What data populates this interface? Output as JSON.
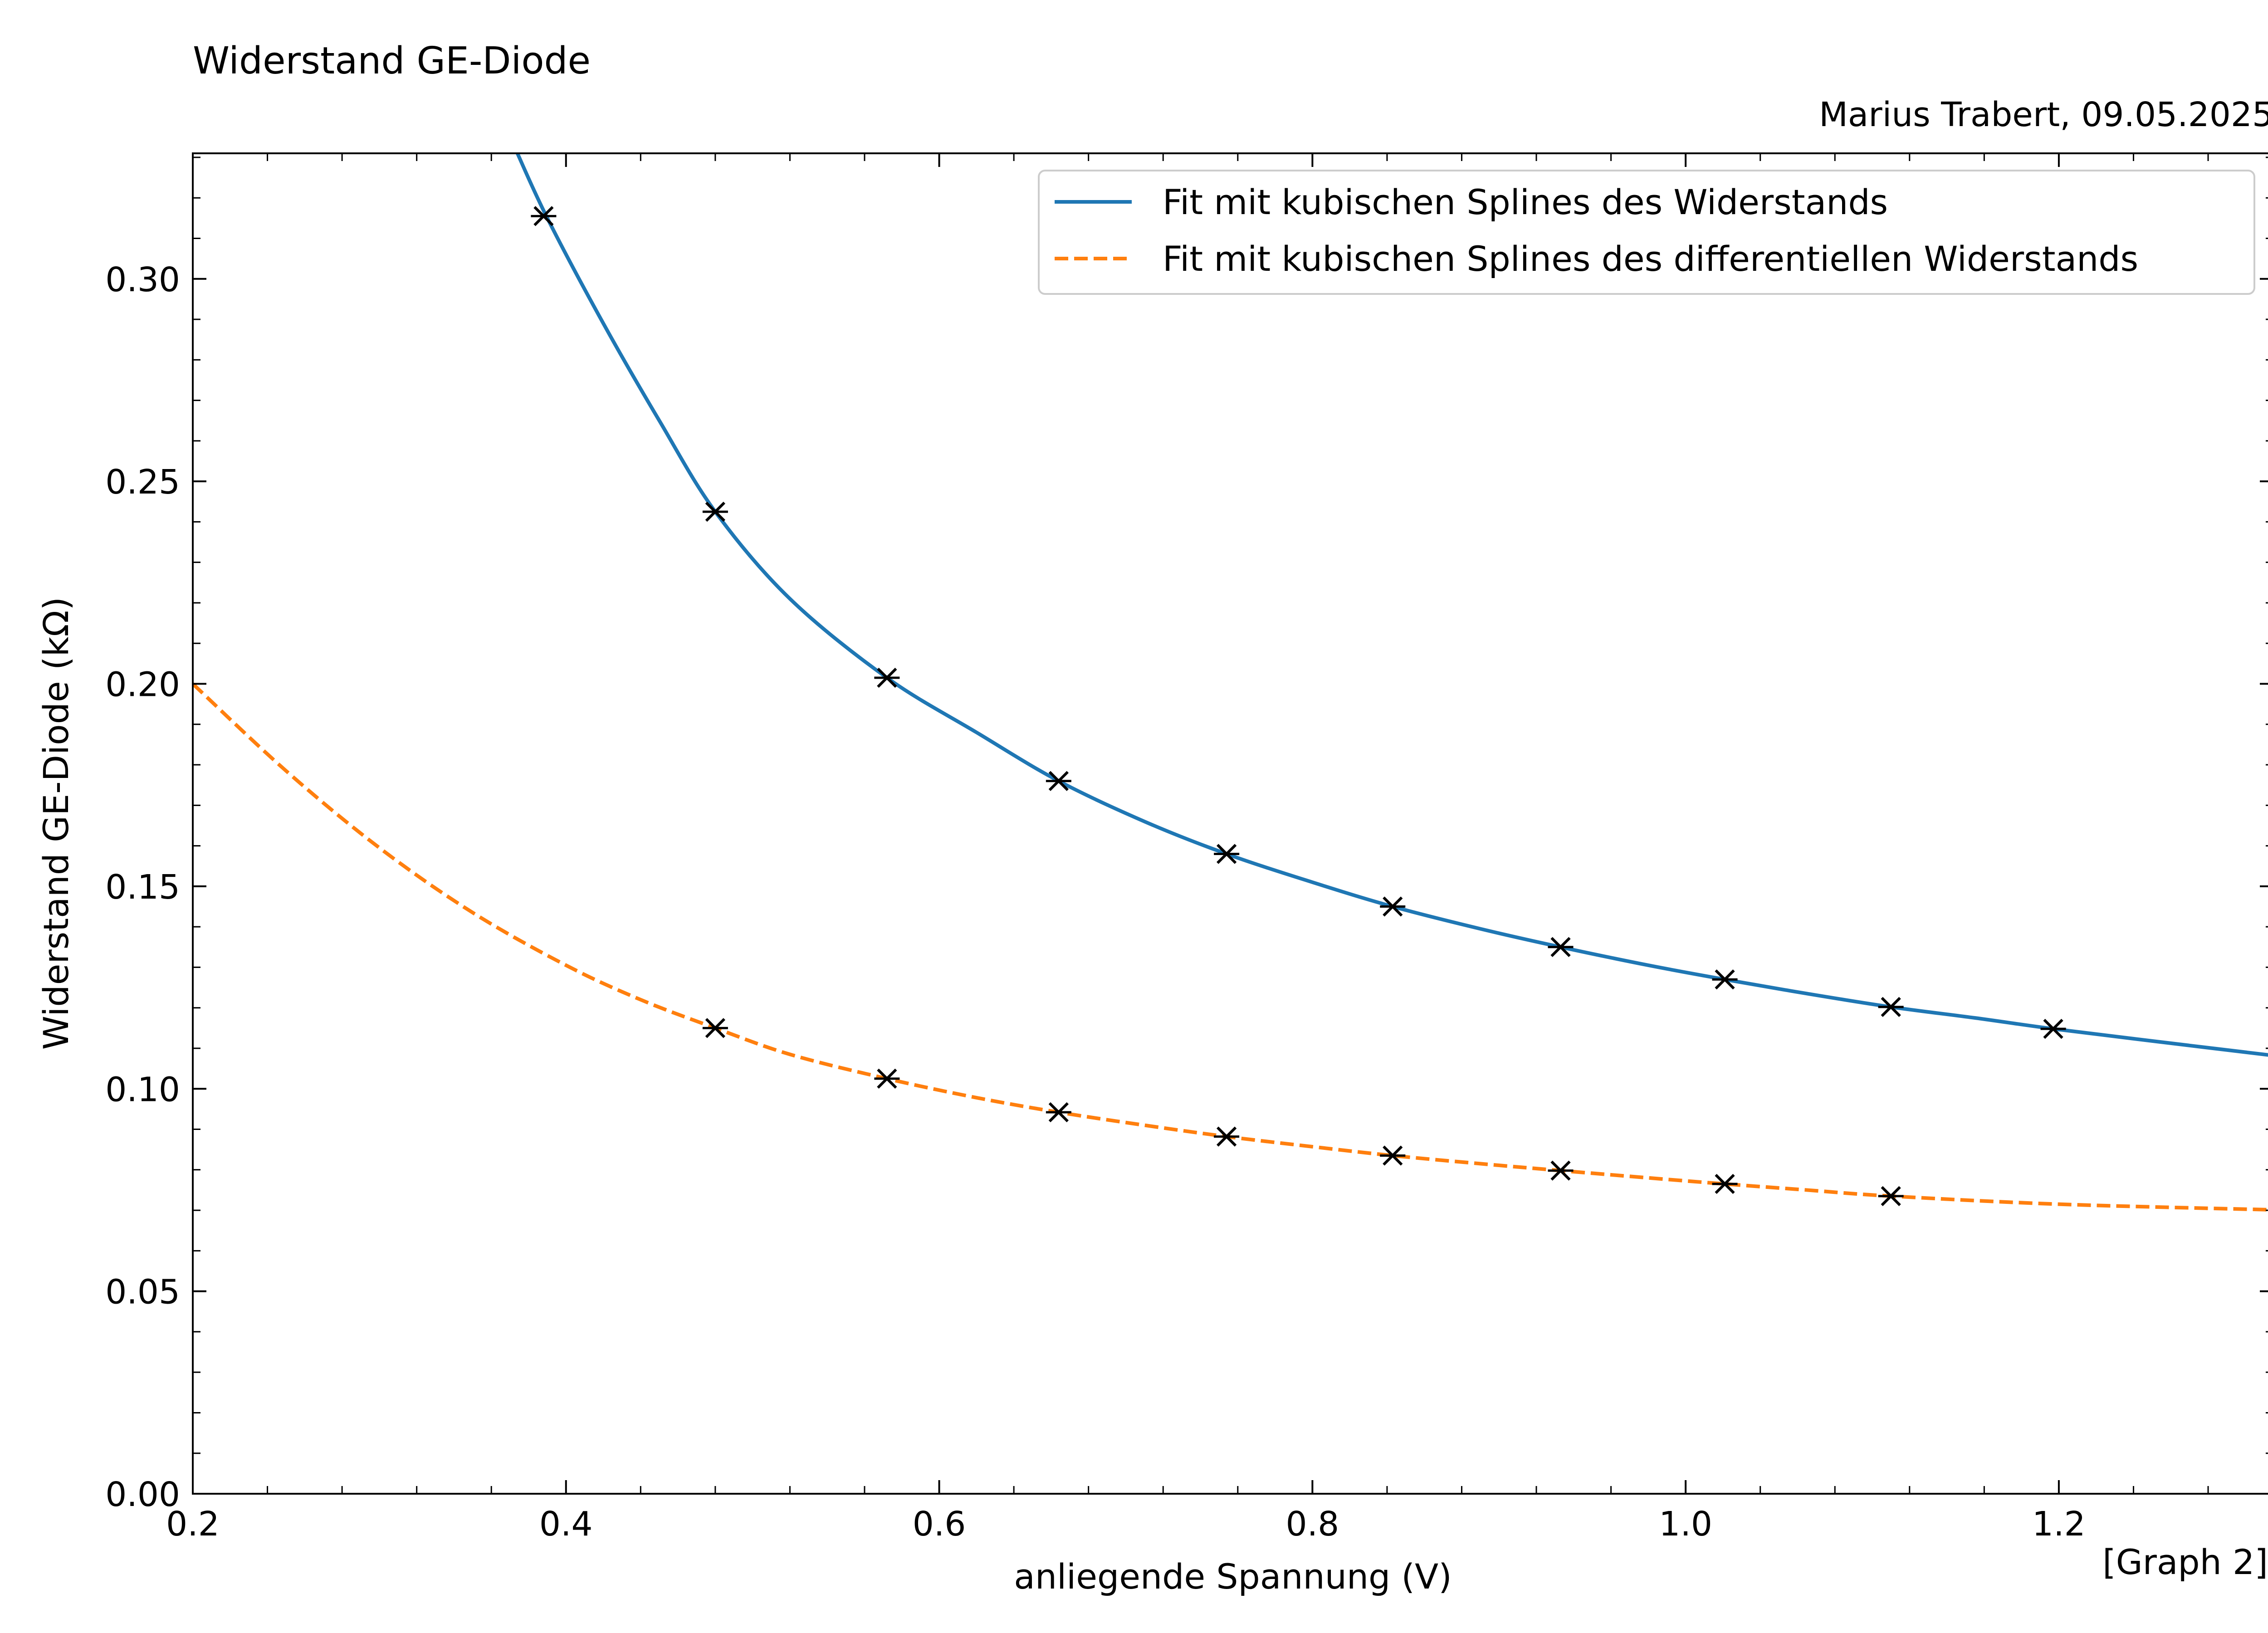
{
  "chart_data": {
    "type": "line",
    "title": "Widerstand GE-Diode",
    "subtitle": "Marius Trabert, 09.05.2025",
    "xlabel": "anliegende Spannung (V)",
    "ylabel": "Widerstand GE-Diode (kΩ)",
    "footnote": "[Graph 2]",
    "xlim": [
      0.2,
      1.315
    ],
    "ylim": [
      0.0,
      0.331
    ],
    "x_ticks": [
      0.2,
      0.4,
      0.6,
      0.8,
      1.0,
      1.2
    ],
    "x_tick_labels": [
      "0.2",
      "0.4",
      "0.6",
      "0.8",
      "1.0",
      "1.2"
    ],
    "y_ticks": [
      0.0,
      0.05,
      0.1,
      0.15,
      0.2,
      0.25,
      0.3
    ],
    "y_tick_labels": [
      "0.00",
      "0.05",
      "0.10",
      "0.15",
      "0.20",
      "0.25",
      "0.30"
    ],
    "grid": false,
    "legend_position": "top-right",
    "colors": {
      "series1": "#1f77b4",
      "series2": "#ff7f0e",
      "markers": "#000000"
    },
    "series": [
      {
        "name": "Fit mit kubischen Splines des Widerstands",
        "style": "solid",
        "curve_x": [
          0.373,
          0.39,
          0.42,
          0.45,
          0.48,
          0.52,
          0.572,
          0.62,
          0.664,
          0.71,
          0.754,
          0.8,
          0.843,
          0.89,
          0.933,
          0.98,
          1.021,
          1.065,
          1.11,
          1.155,
          1.197,
          1.25,
          1.315
        ],
        "curve_y": [
          0.332,
          0.315,
          0.289,
          0.265,
          0.2425,
          0.221,
          0.2015,
          0.188,
          0.176,
          0.166,
          0.158,
          0.151,
          0.145,
          0.1395,
          0.135,
          0.1305,
          0.127,
          0.1235,
          0.1202,
          0.1175,
          0.1148,
          0.1118,
          0.1082
        ],
        "points_x": [
          0.388,
          0.48,
          0.572,
          0.664,
          0.754,
          0.843,
          0.933,
          1.021,
          1.11,
          1.197
        ],
        "points_y": [
          0.3155,
          0.2425,
          0.2015,
          0.176,
          0.158,
          0.145,
          0.135,
          0.127,
          0.1202,
          0.1148
        ]
      },
      {
        "name": "Fit mit kubischen Splines des differentiellen Widerstands",
        "style": "dashed",
        "curve_x": [
          0.2,
          0.25,
          0.3,
          0.35,
          0.4,
          0.44,
          0.48,
          0.52,
          0.572,
          0.62,
          0.664,
          0.71,
          0.754,
          0.8,
          0.843,
          0.89,
          0.933,
          0.98,
          1.021,
          1.065,
          1.11,
          1.2,
          1.315
        ],
        "curve_y": [
          0.2,
          0.1785,
          0.1595,
          0.1435,
          0.1305,
          0.122,
          0.115,
          0.1085,
          0.1025,
          0.0978,
          0.0942,
          0.091,
          0.0882,
          0.0857,
          0.0835,
          0.0815,
          0.0798,
          0.078,
          0.0765,
          0.075,
          0.0735,
          0.0715,
          0.0701
        ],
        "points_x": [
          0.48,
          0.572,
          0.664,
          0.754,
          0.843,
          0.933,
          1.021,
          1.11
        ],
        "points_y": [
          0.115,
          0.1025,
          0.0942,
          0.0882,
          0.0835,
          0.0798,
          0.0765,
          0.0735
        ]
      }
    ]
  }
}
